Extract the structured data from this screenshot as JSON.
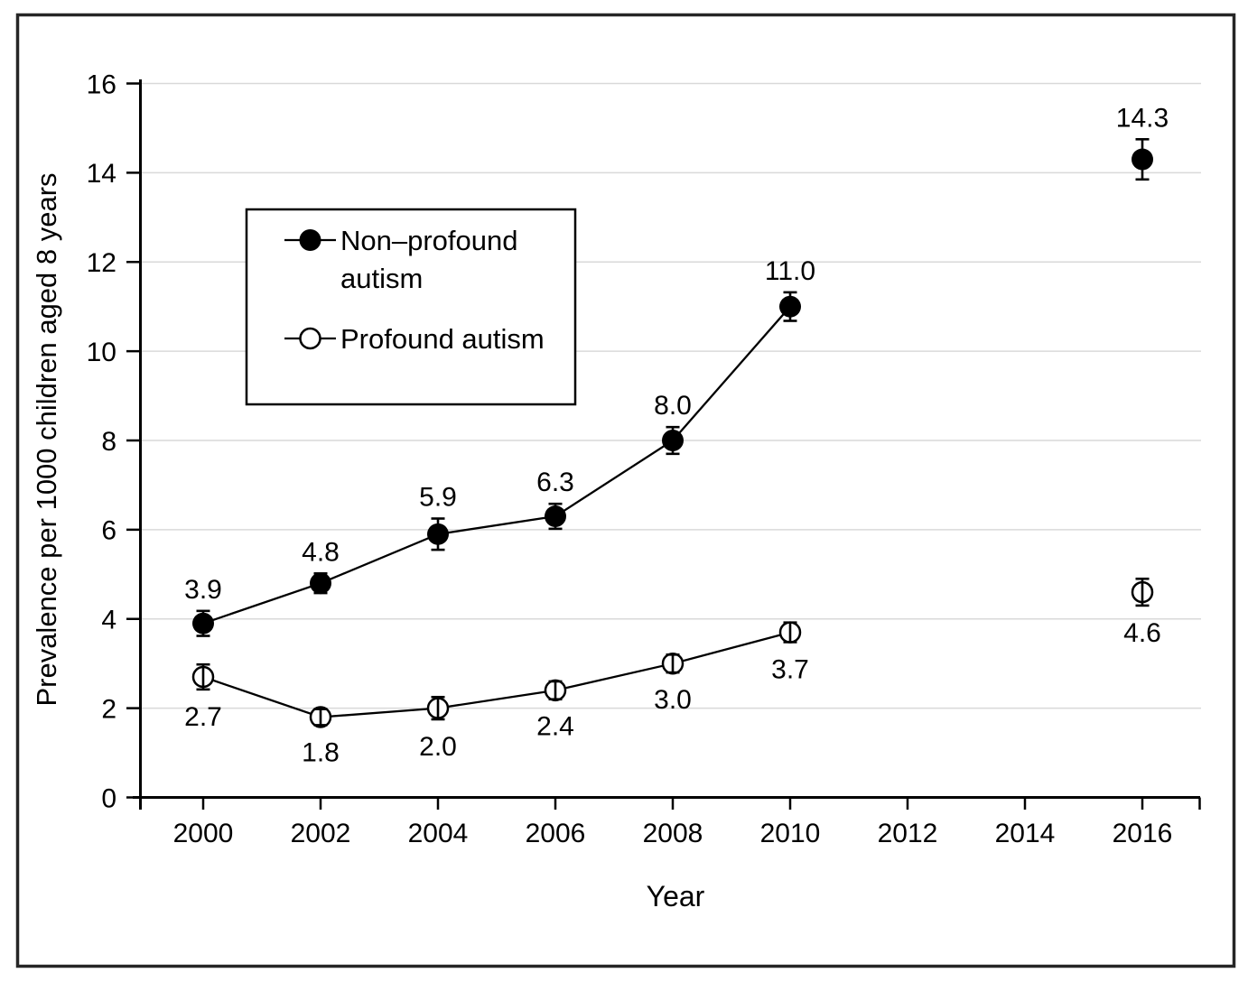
{
  "chart_data": {
    "type": "line",
    "title": "",
    "xlabel": "Year",
    "ylabel": "Prevalence per 1000 children aged 8 years",
    "x_ticks": [
      "2000",
      "2002",
      "2004",
      "2006",
      "2008",
      "2010",
      "2012",
      "2014",
      "2016"
    ],
    "y_ticks": [
      "0",
      "2",
      "4",
      "6",
      "8",
      "10",
      "12",
      "14",
      "16"
    ],
    "ylim": [
      0,
      16
    ],
    "grid": "horizontal",
    "legend_position": "upper-left-inside",
    "x": [
      2000,
      2002,
      2004,
      2006,
      2008,
      2010,
      2016
    ],
    "series": [
      {
        "name": "Non–profound autism",
        "marker": "filled-circle",
        "color": "#000000",
        "values": [
          3.9,
          4.8,
          5.9,
          6.3,
          8.0,
          11.0,
          14.3
        ],
        "errors": [
          0.28,
          0.22,
          0.35,
          0.28,
          0.3,
          0.32,
          0.45
        ],
        "point_labels": [
          "3.9",
          "4.8",
          "5.9",
          "6.3",
          "8.0",
          "11.0",
          "14.3"
        ],
        "label_position": "above"
      },
      {
        "name": "Profound autism",
        "marker": "open-circle",
        "color": "#000000",
        "values": [
          2.7,
          1.8,
          2.0,
          2.4,
          3.0,
          3.7,
          4.6
        ],
        "errors": [
          0.28,
          0.18,
          0.25,
          0.2,
          0.2,
          0.22,
          0.3
        ],
        "point_labels": [
          "2.7",
          "1.8",
          "2.0",
          "2.4",
          "3.0",
          "3.7",
          "4.6"
        ],
        "label_position": "below"
      }
    ],
    "legend": {
      "items": [
        {
          "label": "Non–profound autism",
          "lines": [
            "Non–profound",
            "autism"
          ],
          "marker": "filled-circle"
        },
        {
          "label": "Profound autism",
          "lines": [
            "Profound autism"
          ],
          "marker": "open-circle"
        }
      ]
    },
    "colors": {
      "foreground": "#000000",
      "gridline": "#d9d9d9",
      "background": "#ffffff",
      "border": "#262626"
    }
  }
}
